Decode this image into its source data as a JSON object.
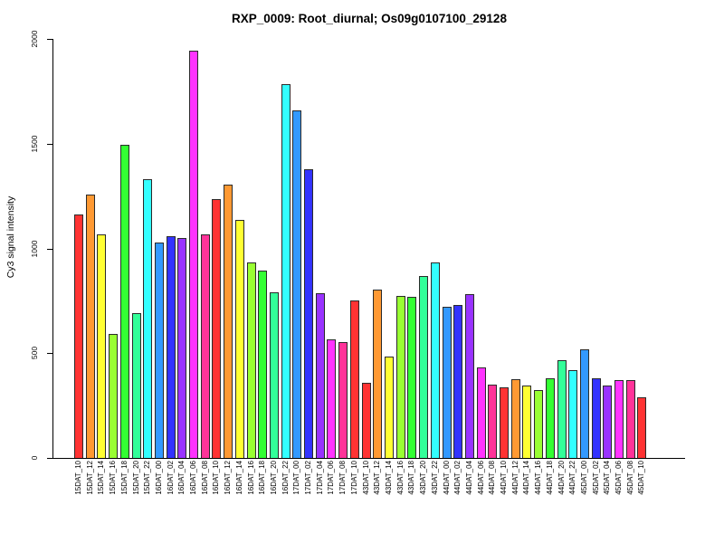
{
  "chart_data": {
    "type": "bar",
    "title": "RXP_0009: Root_diurnal; Os09g0107100_29128",
    "xlabel": "",
    "ylabel": "Cy3 signal intensity",
    "ylim": [
      0,
      2000
    ],
    "yticks": [
      0,
      500,
      1000,
      1500,
      2000
    ],
    "grid": false,
    "legend": null,
    "bar_border_color": "#2a2a2a",
    "axis_color": "#000000",
    "categories": [
      "15DAT_10",
      "15DAT_12",
      "15DAT_14",
      "15DAT_16",
      "15DAT_18",
      "15DAT_20",
      "15DAT_22",
      "16DAT_00",
      "16DAT_02",
      "16DAT_04",
      "16DAT_06",
      "16DAT_08",
      "16DAT_10",
      "16DAT_12",
      "16DAT_14",
      "16DAT_16",
      "16DAT_18",
      "16DAT_20",
      "16DAT_22",
      "17DAT_00",
      "17DAT_02",
      "17DAT_04",
      "17DAT_06",
      "17DAT_08",
      "17DAT_10",
      "43DAT_10",
      "43DAT_12",
      "43DAT_14",
      "43DAT_16",
      "43DAT_18",
      "43DAT_20",
      "43DAT_22",
      "44DAT_00",
      "44DAT_02",
      "44DAT_04",
      "44DAT_06",
      "44DAT_08",
      "44DAT_10",
      "44DAT_12",
      "44DAT_14",
      "44DAT_16",
      "44DAT_18",
      "44DAT_20",
      "44DAT_22",
      "45DAT_00",
      "45DAT_02",
      "45DAT_04",
      "45DAT_06",
      "45DAT_08",
      "45DAT_10"
    ],
    "values": [
      1160,
      1255,
      1065,
      590,
      1495,
      690,
      1330,
      1030,
      1060,
      1050,
      1945,
      1065,
      1235,
      1305,
      1135,
      935,
      895,
      790,
      1785,
      1660,
      1380,
      785,
      565,
      555,
      750,
      360,
      805,
      485,
      775,
      770,
      870,
      935,
      720,
      730,
      780,
      430,
      350,
      335,
      375,
      345,
      325,
      380,
      465,
      420,
      520,
      380,
      345,
      370,
      370,
      290
    ],
    "bar_colors": [
      "#FF3333",
      "#FF9933",
      "#FFFF33",
      "#99FF33",
      "#33FF33",
      "#33FF99",
      "#33FFFF",
      "#3399FF",
      "#3333FF",
      "#9933FF",
      "#FF33FF",
      "#FF3399",
      "#FF3333",
      "#FF9933",
      "#FFFF33",
      "#99FF33",
      "#33FF33",
      "#33FF99",
      "#33FFFF",
      "#3399FF",
      "#3333FF",
      "#9933FF",
      "#FF33FF",
      "#FF3399",
      "#FF3333",
      "#FF3333",
      "#FF9933",
      "#FFFF33",
      "#99FF33",
      "#33FF33",
      "#33FF99",
      "#33FFFF",
      "#3399FF",
      "#3333FF",
      "#9933FF",
      "#FF33FF",
      "#FF3399",
      "#FF3333",
      "#FF9933",
      "#FFFF33",
      "#99FF33",
      "#33FF33",
      "#33FF99",
      "#33FFFF",
      "#3399FF",
      "#3333FF",
      "#9933FF",
      "#FF33FF",
      "#FF3399",
      "#FF3333"
    ]
  }
}
